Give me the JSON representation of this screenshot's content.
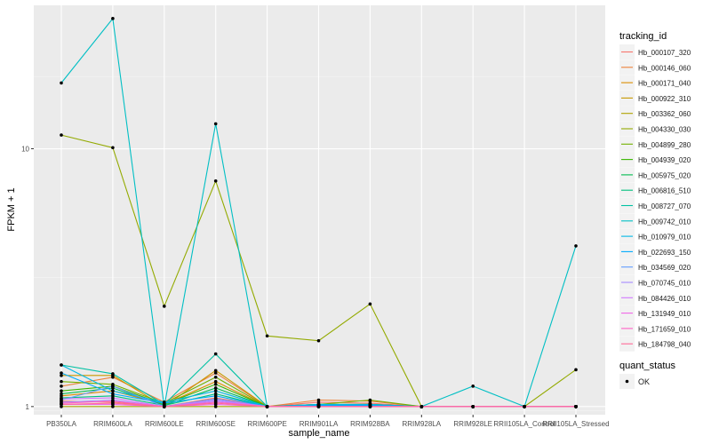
{
  "chart_data": {
    "type": "line",
    "xlabel": "sample_name",
    "ylabel": "FPKM + 1",
    "y_scale": "log10",
    "ylim": [
      0.93,
      36
    ],
    "grid": true,
    "legend_position": "right",
    "categories": [
      "PB350LA",
      "RRIM600LA",
      "RRIM600LE",
      "RRIM600SE",
      "RRIM600PE",
      "RRIM901LA",
      "RRIM928BA",
      "RRIM928LA",
      "RRIM928LE",
      "RRII105LA_Control",
      "RRII105LA_Stressed"
    ],
    "y_ticks": [
      1,
      10
    ],
    "y_tick_labels": [
      "1",
      "10"
    ],
    "legend": {
      "title": "tracking_id",
      "quant_title": "quant_status",
      "quant_label": "OK"
    },
    "series": [
      {
        "name": "Hb_000107_320",
        "color": "#F8766D",
        "values": [
          1.05,
          1.04,
          1.0,
          1.08,
          1.0,
          1.04,
          1.03,
          1.0,
          1.0,
          1.0,
          1.0
        ]
      },
      {
        "name": "Hb_000146_060",
        "color": "#EC8239",
        "values": [
          1.2,
          1.3,
          1.04,
          1.35,
          1.0,
          1.06,
          1.05,
          1.0,
          1.0,
          1.0,
          1.0
        ]
      },
      {
        "name": "Hb_000171_040",
        "color": "#DB8E00",
        "values": [
          1.1,
          1.15,
          1.02,
          1.25,
          1.0,
          1.02,
          1.02,
          1.0,
          1.0,
          1.0,
          1.0
        ]
      },
      {
        "name": "Hb_000922_310",
        "color": "#C79800",
        "values": [
          1.32,
          1.32,
          1.0,
          1.38,
          1.0,
          1.0,
          1.0,
          1.0,
          1.0,
          1.0,
          1.0
        ]
      },
      {
        "name": "Hb_003362_060",
        "color": "#AFA100",
        "values": [
          1.0,
          1.0,
          1.0,
          1.0,
          1.0,
          1.0,
          1.0,
          1.0,
          1.0,
          1.0,
          1.0
        ]
      },
      {
        "name": "Hb_004330_030",
        "color": "#93AA00",
        "values": [
          11.3,
          10.1,
          2.45,
          7.5,
          1.88,
          1.8,
          2.5,
          1.0,
          1.0,
          1.0,
          1.39
        ]
      },
      {
        "name": "Hb_004899_280",
        "color": "#72B000",
        "values": [
          1.25,
          1.22,
          1.03,
          1.3,
          1.0,
          1.02,
          1.06,
          1.0,
          1.0,
          1.0,
          1.0
        ]
      },
      {
        "name": "Hb_004939_020",
        "color": "#39B600",
        "values": [
          1.15,
          1.2,
          1.02,
          1.22,
          1.0,
          1.02,
          1.02,
          1.0,
          1.0,
          1.0,
          1.0
        ]
      },
      {
        "name": "Hb_005975_020",
        "color": "#00BB4E",
        "values": [
          1.12,
          1.18,
          1.01,
          1.18,
          1.0,
          1.01,
          1.02,
          1.0,
          1.0,
          1.0,
          1.0
        ]
      },
      {
        "name": "Hb_006816_510",
        "color": "#00BF7D",
        "values": [
          1.08,
          1.1,
          1.01,
          1.12,
          1.0,
          1.01,
          1.01,
          1.0,
          1.0,
          1.0,
          1.0
        ]
      },
      {
        "name": "Hb_008727_070",
        "color": "#00C1A3",
        "values": [
          1.45,
          1.34,
          1.02,
          1.6,
          1.0,
          1.0,
          1.0,
          1.0,
          1.0,
          1.0,
          1.0
        ]
      },
      {
        "name": "Hb_009742_010",
        "color": "#00BFC4",
        "values": [
          18.0,
          32.0,
          1.0,
          12.5,
          1.0,
          1.0,
          1.0,
          1.0,
          1.2,
          1.0,
          4.2
        ]
      },
      {
        "name": "Hb_010979_010",
        "color": "#00B8E5",
        "values": [
          1.45,
          1.15,
          1.04,
          1.15,
          1.0,
          1.02,
          1.02,
          1.0,
          1.0,
          1.0,
          1.0
        ]
      },
      {
        "name": "Hb_022693_150",
        "color": "#00ABFD",
        "values": [
          1.35,
          1.12,
          1.03,
          1.1,
          1.0,
          1.01,
          1.01,
          1.0,
          1.0,
          1.0,
          1.0
        ]
      },
      {
        "name": "Hb_034569_020",
        "color": "#619CFF",
        "values": [
          1.06,
          1.2,
          1.0,
          1.07,
          1.0,
          1.0,
          1.0,
          1.0,
          1.0,
          1.0,
          1.0
        ]
      },
      {
        "name": "Hb_070745_010",
        "color": "#A58AFF",
        "values": [
          1.04,
          1.06,
          1.0,
          1.05,
          1.0,
          1.0,
          1.0,
          1.0,
          1.0,
          1.0,
          1.0
        ]
      },
      {
        "name": "Hb_084426_010",
        "color": "#D277FF",
        "values": [
          1.07,
          1.08,
          1.0,
          1.06,
          1.0,
          1.0,
          1.0,
          1.0,
          1.0,
          1.0,
          1.0
        ]
      },
      {
        "name": "Hb_131949_010",
        "color": "#F166E8",
        "values": [
          1.02,
          1.02,
          1.0,
          1.02,
          1.0,
          1.0,
          1.0,
          1.0,
          1.0,
          1.0,
          1.0
        ]
      },
      {
        "name": "Hb_171659_010",
        "color": "#FF61C5",
        "values": [
          1.03,
          1.05,
          1.0,
          1.04,
          1.0,
          1.0,
          1.0,
          1.0,
          1.0,
          1.0,
          1.0
        ]
      },
      {
        "name": "Hb_184798_040",
        "color": "#FF6A98",
        "values": [
          1.02,
          1.03,
          1.0,
          1.03,
          1.0,
          1.0,
          1.0,
          1.0,
          1.0,
          1.0,
          1.0
        ]
      }
    ]
  }
}
